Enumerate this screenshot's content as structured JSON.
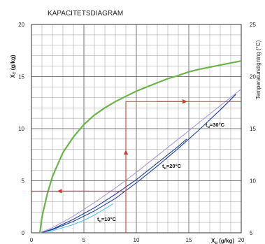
{
  "chart_data": {
    "type": "line",
    "title": "KAPACITETSDIAGRAM",
    "xlabel": "X",
    "xlabel_sub": "u",
    "xlabel_unit": " (g/kg)",
    "ylabel_left": "X",
    "ylabel_left_sub": "T",
    "ylabel_left_unit": " (g/kg)",
    "ylabel_right": "Temperaturstigning (°C)",
    "xlim": [
      0,
      20
    ],
    "ylim_left": [
      0,
      20
    ],
    "ylim_right": [
      5,
      25
    ],
    "x_ticks": [
      "0",
      "5",
      "10",
      "15",
      "20"
    ],
    "y_left_ticks": [
      "0",
      "5",
      "10",
      "15",
      "20"
    ],
    "y_right_ticks": [
      "5",
      "10",
      "15",
      "20",
      "25"
    ],
    "grid": true,
    "curve_labels": [
      {
        "pre": "t",
        "sub": "u",
        "post": "=10°C"
      },
      {
        "pre": "t",
        "sub": "u",
        "post": "=20°C"
      },
      {
        "pre": "t",
        "sub": "u",
        "post": "=30°C"
      }
    ],
    "series": [
      {
        "color": "#6bb44a",
        "axis": "right",
        "x": [
          0.8,
          1.0,
          1.5,
          2.0,
          3.0,
          4.0,
          5.0,
          6.0,
          7.0,
          8.0,
          9.0,
          10.0,
          11.0,
          12.0,
          13.0,
          14.0,
          15.0,
          16.0,
          17.0,
          18.0,
          19.0,
          20.0
        ],
        "y": [
          5.0,
          6.5,
          8.7,
          10.4,
          12.7,
          14.2,
          15.4,
          16.3,
          17.0,
          17.6,
          18.1,
          18.6,
          19.0,
          19.4,
          19.8,
          20.1,
          20.45,
          20.7,
          20.9,
          21.1,
          21.3,
          21.5
        ]
      },
      {
        "color": "#4fc3ea",
        "axis": "left",
        "x": [
          0.8,
          2.0,
          3.0,
          4.0,
          5.0,
          6.0,
          7.0,
          7.8
        ],
        "y": [
          0.0,
          0.2,
          0.5,
          0.8,
          1.2,
          1.7,
          2.3,
          2.8
        ]
      },
      {
        "color": "#1f3f9a",
        "axis": "left",
        "x": [
          0.8,
          2.0,
          4.0,
          6.0,
          8.0,
          10.0,
          12.0,
          14.0,
          16.0,
          18.0,
          19.5
        ],
        "y": [
          0.0,
          0.3,
          1.1,
          2.1,
          3.3,
          4.8,
          6.4,
          8.1,
          9.9,
          11.8,
          13.3
        ]
      },
      {
        "color": "#1f3f9a",
        "axis": "left",
        "x": [
          0.8,
          2.0,
          4.0,
          6.0,
          8.0,
          10.0,
          12.0,
          14.0,
          14.8
        ],
        "y": [
          0.0,
          0.35,
          1.3,
          2.4,
          3.7,
          5.1,
          6.7,
          8.3,
          9.0
        ]
      },
      {
        "color": "#a79bd9",
        "axis": "left",
        "x": [
          0.8,
          2.0,
          4.0,
          6.0,
          8.0,
          10.0,
          12.0,
          14.0,
          16.0,
          18.0,
          20.0
        ],
        "y": [
          0.0,
          0.5,
          1.6,
          2.9,
          4.3,
          5.8,
          7.4,
          9.0,
          10.6,
          12.2,
          13.8
        ]
      }
    ],
    "annotations": [
      {
        "type": "arrow",
        "from": [
          9.0,
          0.0
        ],
        "to": [
          9.0,
          7.9
        ],
        "color": "#d23a2a"
      },
      {
        "type": "line",
        "from": [
          9.0,
          7.9
        ],
        "to": [
          9.0,
          12.6
        ],
        "color": "#d23a2a"
      },
      {
        "type": "line",
        "from": [
          9.0,
          12.6
        ],
        "to": [
          20.0,
          12.6
        ],
        "color": "#d23a2a"
      },
      {
        "type": "arrow",
        "from": [
          12.0,
          12.6
        ],
        "to": [
          14.8,
          12.6
        ],
        "color": "#d23a2a"
      },
      {
        "type": "line",
        "from": [
          9.0,
          4.0
        ],
        "to": [
          0.0,
          4.0
        ],
        "color": "#d23a2a"
      },
      {
        "type": "arrow",
        "from": [
          5.5,
          4.0
        ],
        "to": [
          2.5,
          4.0
        ],
        "color": "#d23a2a"
      }
    ]
  }
}
